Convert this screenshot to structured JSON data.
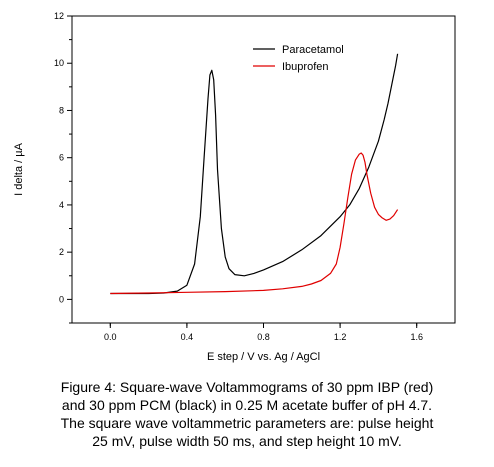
{
  "chart_data": {
    "type": "line",
    "xlabel": "E step / V vs. Ag / AgCl",
    "ylabel": "I delta / µA",
    "xlim": [
      -0.2,
      1.8
    ],
    "ylim": [
      -1,
      12
    ],
    "xticks": [
      0.0,
      0.4,
      0.8,
      1.2,
      1.6
    ],
    "xtick_labels": [
      "0.0",
      "0.4",
      "0.8",
      "1.2",
      "1.6"
    ],
    "yticks": [
      0,
      2,
      4,
      6,
      8,
      10,
      12
    ],
    "ytick_labels": [
      "0",
      "2",
      "4",
      "6",
      "8",
      "10",
      "12"
    ],
    "grid": false,
    "legend_position": "top-right",
    "series": [
      {
        "name": "Paracetamol",
        "color": "#000000",
        "x": [
          0.0,
          0.1,
          0.2,
          0.28,
          0.35,
          0.4,
          0.44,
          0.47,
          0.49,
          0.51,
          0.52,
          0.53,
          0.54,
          0.55,
          0.56,
          0.58,
          0.6,
          0.62,
          0.65,
          0.7,
          0.75,
          0.8,
          0.9,
          1.0,
          1.1,
          1.2,
          1.25,
          1.3,
          1.35,
          1.4,
          1.43,
          1.45,
          1.47,
          1.49,
          1.5
        ],
        "y": [
          0.25,
          0.25,
          0.25,
          0.27,
          0.35,
          0.6,
          1.5,
          3.5,
          6.0,
          8.5,
          9.5,
          9.7,
          9.3,
          7.8,
          5.5,
          3.0,
          1.8,
          1.3,
          1.05,
          1.0,
          1.1,
          1.25,
          1.6,
          2.1,
          2.7,
          3.5,
          4.0,
          4.7,
          5.6,
          6.7,
          7.6,
          8.3,
          9.1,
          9.9,
          10.4
        ]
      },
      {
        "name": "Ibuprofen",
        "color": "#e00000",
        "x": [
          0.0,
          0.2,
          0.4,
          0.6,
          0.8,
          0.9,
          1.0,
          1.05,
          1.1,
          1.15,
          1.18,
          1.2,
          1.22,
          1.24,
          1.26,
          1.28,
          1.3,
          1.31,
          1.32,
          1.33,
          1.34,
          1.36,
          1.38,
          1.4,
          1.42,
          1.44,
          1.46,
          1.48,
          1.5
        ],
        "y": [
          0.25,
          0.27,
          0.3,
          0.33,
          0.38,
          0.45,
          0.55,
          0.65,
          0.8,
          1.1,
          1.5,
          2.2,
          3.2,
          4.3,
          5.3,
          5.9,
          6.15,
          6.2,
          6.1,
          5.8,
          5.3,
          4.5,
          3.9,
          3.6,
          3.45,
          3.35,
          3.4,
          3.55,
          3.8
        ]
      }
    ]
  },
  "caption": [
    "Figure 4: Square-wave Voltammograms  of 30 ppm IBP (red)",
    "and 30 ppm PCM (black) in 0.25 M acetate buffer of pH 4.7.",
    "The square wave voltammetric parameters  are:   pulse height",
    "25 mV,  pulse width 50 ms, and step height 10 mV."
  ]
}
